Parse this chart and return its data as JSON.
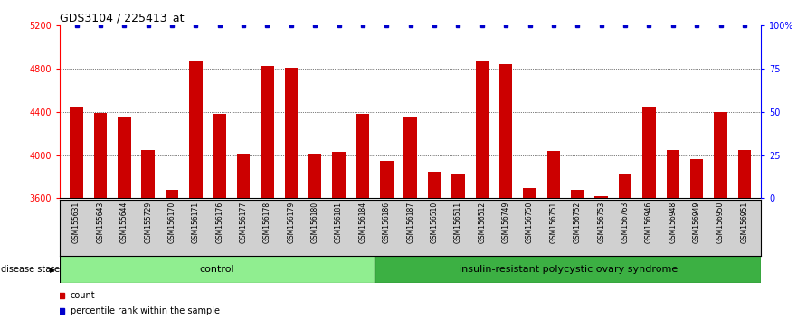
{
  "title": "GDS3104 / 225413_at",
  "samples": [
    "GSM155631",
    "GSM155643",
    "GSM155644",
    "GSM155729",
    "GSM156170",
    "GSM156171",
    "GSM156176",
    "GSM156177",
    "GSM156178",
    "GSM156179",
    "GSM156180",
    "GSM156181",
    "GSM156184",
    "GSM156186",
    "GSM156187",
    "GSM156510",
    "GSM156511",
    "GSM156512",
    "GSM156749",
    "GSM156750",
    "GSM156751",
    "GSM156752",
    "GSM156753",
    "GSM156763",
    "GSM156946",
    "GSM156948",
    "GSM156949",
    "GSM156950",
    "GSM156951"
  ],
  "values": [
    4450,
    4390,
    4360,
    4050,
    3680,
    4870,
    4380,
    4010,
    4830,
    4810,
    4010,
    4030,
    4380,
    3950,
    4360,
    3850,
    3830,
    4870,
    4840,
    3700,
    4040,
    3680,
    3620,
    3820,
    4450,
    4050,
    3960,
    4400,
    4050
  ],
  "n_control": 13,
  "bar_color": "#CC0000",
  "percentile_color": "#0000CC",
  "ymin": 3600,
  "ymax": 5200,
  "yticks": [
    3600,
    4000,
    4400,
    4800,
    5200
  ],
  "right_yticks": [
    0,
    25,
    50,
    75,
    100
  ],
  "grid_values": [
    4000,
    4400,
    4800
  ],
  "title_fontsize": 9,
  "tick_fontsize": 7,
  "bar_label_fontsize": 5.5,
  "group_fontsize": 8,
  "legend_fontsize": 7,
  "disease_label": "disease state",
  "legend_count_label": "count",
  "legend_percentile_label": "percentile rank within the sample",
  "xlabel_bg_color": "#D0D0D0",
  "ctrl_color": "#90EE90",
  "ins_color": "#3CB043",
  "group_labels": [
    "control",
    "insulin-resistant polycystic ovary syndrome"
  ]
}
